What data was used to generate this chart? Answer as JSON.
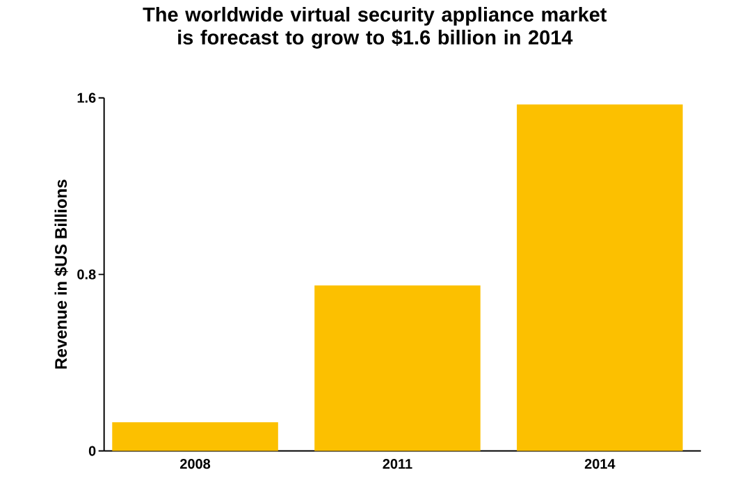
{
  "chart_data": {
    "type": "bar",
    "title": "The worldwide virtual security appliance market is forecast to grow to $1.6 billion in 2014",
    "ylabel": "Revenue in $US Billions",
    "categories": [
      "2008",
      "2011",
      "2014"
    ],
    "values": [
      0.13,
      0.75,
      1.57
    ],
    "color": "#fcc000",
    "ylim": [
      0,
      1.6
    ],
    "yticks": [
      0,
      0.8,
      1.6
    ],
    "grid": false
  }
}
